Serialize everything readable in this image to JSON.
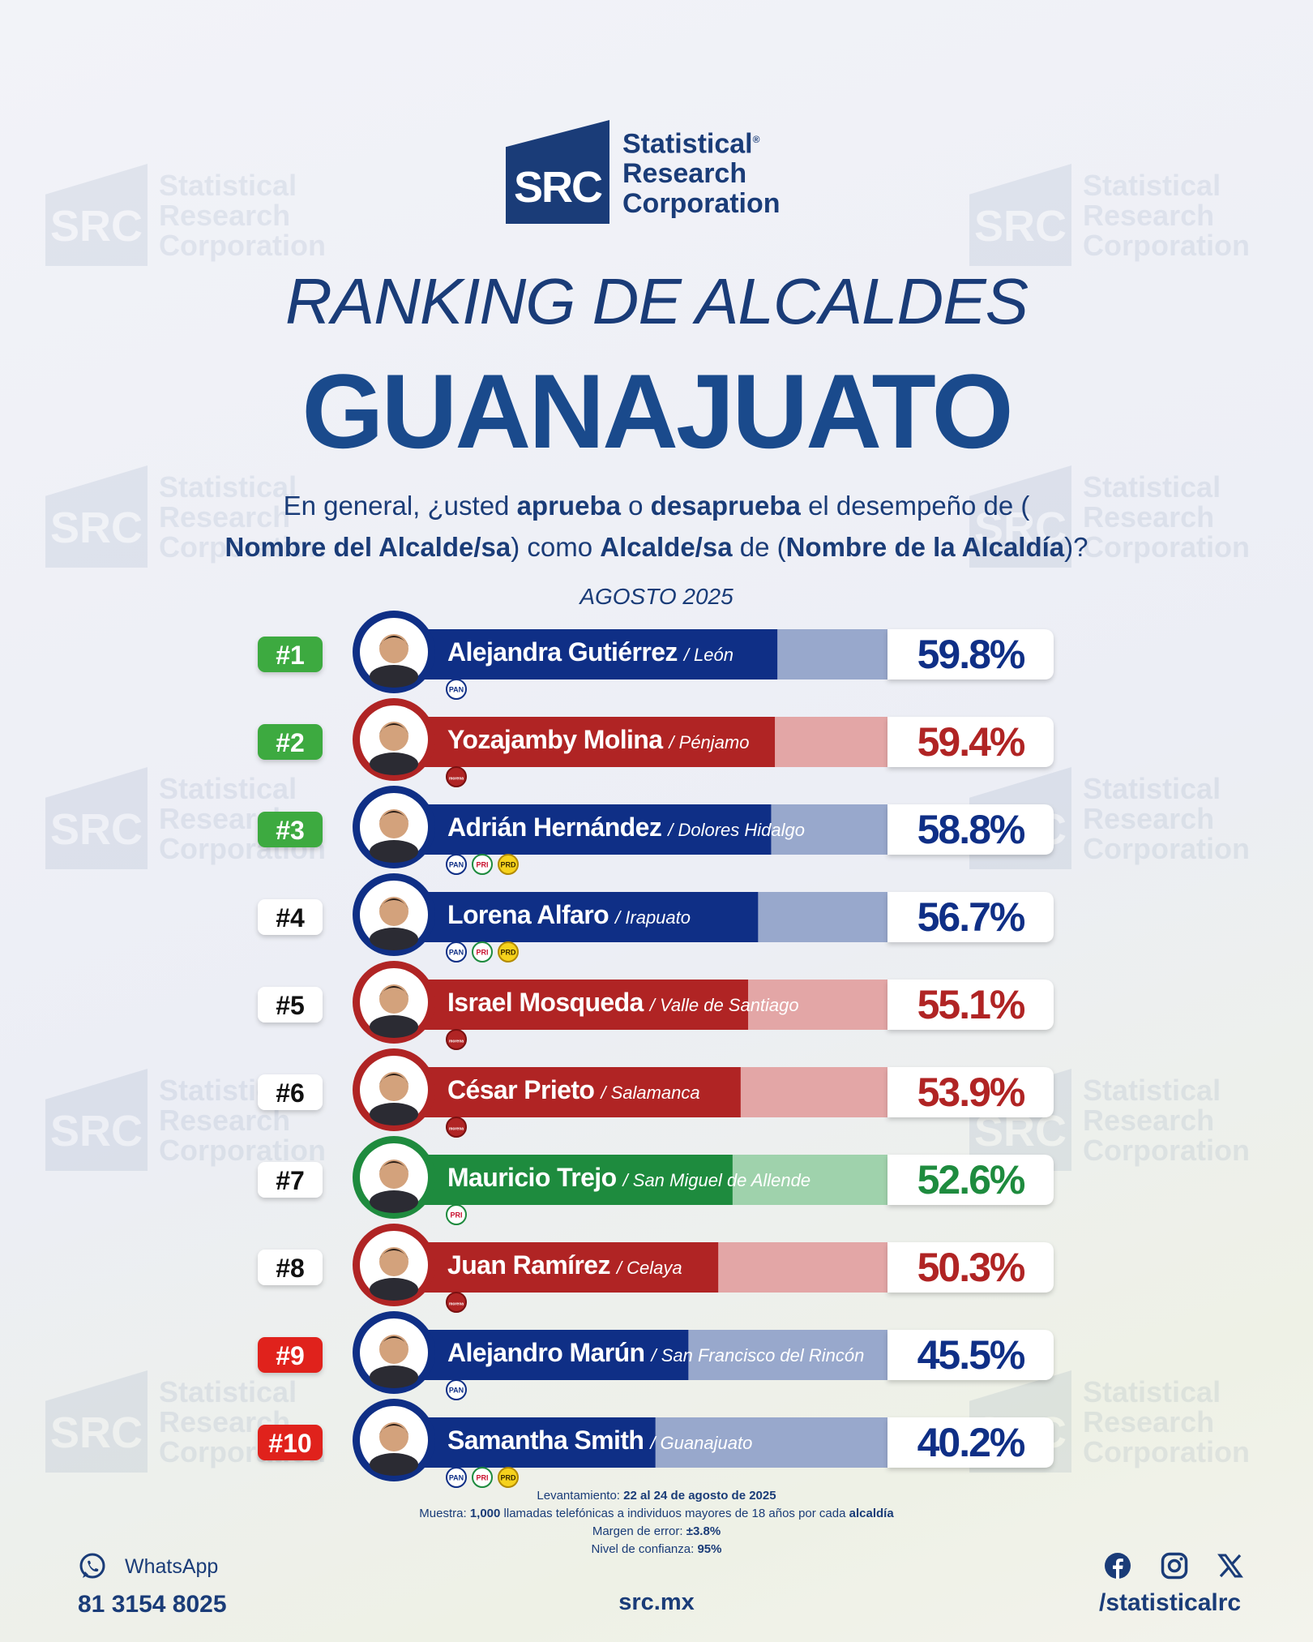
{
  "logo": {
    "mark": "SRC",
    "line1": "Statistical",
    "line2": "Research",
    "line3": "Corporation",
    "reg": "®"
  },
  "header": {
    "subtitle": "RANKING DE ALCALDES",
    "title": "GUANAJUATO",
    "date": "AGOSTO 2025"
  },
  "question": {
    "p1": "En general, ¿usted ",
    "b1": "aprueba",
    "p2": " o ",
    "b2": "desaprueba",
    "p3": " el desempeño de (",
    "b3": "Nombre del Alcalde/sa",
    "p4": ") como ",
    "b4": "Alcalde/sa",
    "p5": " de (",
    "b5": "Nombre de la Alcaldía",
    "p6": ")?"
  },
  "colors": {
    "pan": "#0f2f86",
    "pan_light": "#98a8cc",
    "morena": "#b02424",
    "morena_light": "#e3a6a6",
    "pri": "#1e8b3e",
    "pri_light": "#9fd2ac",
    "rank_top": "#3eaa3f",
    "rank_bottom": "#e0211b",
    "text": "#1a3c78"
  },
  "chart_data": {
    "type": "bar",
    "ylim": [
      0,
      100
    ],
    "rows": [
      {
        "rank": "#1",
        "name": "Alejandra Gutiérrez",
        "city": "/ León",
        "value": 59.8,
        "label": "59.8%",
        "color": "pan",
        "rank_style": "top",
        "parties": [
          "PAN"
        ]
      },
      {
        "rank": "#2",
        "name": "Yozajamby Molina",
        "city": "/ Pénjamo",
        "value": 59.4,
        "label": "59.4%",
        "color": "morena",
        "rank_style": "top",
        "parties": [
          "morena"
        ]
      },
      {
        "rank": "#3",
        "name": "Adrián Hernández",
        "city": "/ Dolores Hidalgo",
        "value": 58.8,
        "label": "58.8%",
        "color": "pan",
        "rank_style": "top",
        "parties": [
          "PAN",
          "PRI",
          "PRD"
        ]
      },
      {
        "rank": "#4",
        "name": "Lorena Alfaro",
        "city": "/ Irapuato",
        "value": 56.7,
        "label": "56.7%",
        "color": "pan",
        "rank_style": "mid",
        "parties": [
          "PAN",
          "PRI",
          "PRD"
        ]
      },
      {
        "rank": "#5",
        "name": "Israel Mosqueda",
        "city": "/ Valle de Santiago",
        "value": 55.1,
        "label": "55.1%",
        "color": "morena",
        "rank_style": "mid",
        "parties": [
          "morena"
        ]
      },
      {
        "rank": "#6",
        "name": "César Prieto",
        "city": "/ Salamanca",
        "value": 53.9,
        "label": "53.9%",
        "color": "morena",
        "rank_style": "mid",
        "parties": [
          "morena"
        ]
      },
      {
        "rank": "#7",
        "name": "Mauricio Trejo",
        "city": "/ San Miguel de Allende",
        "value": 52.6,
        "label": "52.6%",
        "color": "pri",
        "rank_style": "mid",
        "parties": [
          "PRI"
        ]
      },
      {
        "rank": "#8",
        "name": "Juan Ramírez",
        "city": "/ Celaya",
        "value": 50.3,
        "label": "50.3%",
        "color": "morena",
        "rank_style": "mid",
        "parties": [
          "morena"
        ]
      },
      {
        "rank": "#9",
        "name": "Alejandro Marún",
        "city": "/ San Francisco del Rincón",
        "value": 45.5,
        "label": "45.5%",
        "color": "pan",
        "rank_style": "bottom",
        "parties": [
          "PAN"
        ]
      },
      {
        "rank": "#10",
        "name": "Samantha Smith",
        "city": "/ Guanajuato",
        "value": 40.2,
        "label": "40.2%",
        "color": "pan",
        "rank_style": "bottom",
        "parties": [
          "PAN",
          "PRI",
          "PRD"
        ]
      }
    ]
  },
  "footnote": {
    "l1_label": "Levantamiento: ",
    "l1_value": "22 al 24 de agosto de 2025",
    "l2_label": "Muestra: ",
    "l2_value": "1,000",
    "l2_mid": " llamadas telefónicas a individuos mayores de 18 años por cada ",
    "l2_end": "alcaldía",
    "l3_label": "Margen de error: ",
    "l3_value": "±3.8%",
    "l4_label": "Nivel de confianza: ",
    "l4_value": "95%"
  },
  "contact": {
    "whatsapp_label": "WhatsApp",
    "whatsapp_number": "81 3154 8025",
    "website": "src.mx",
    "handle": "/statisticalrc"
  },
  "icons": [
    "whatsapp-icon",
    "facebook-icon",
    "instagram-icon",
    "x-icon"
  ]
}
